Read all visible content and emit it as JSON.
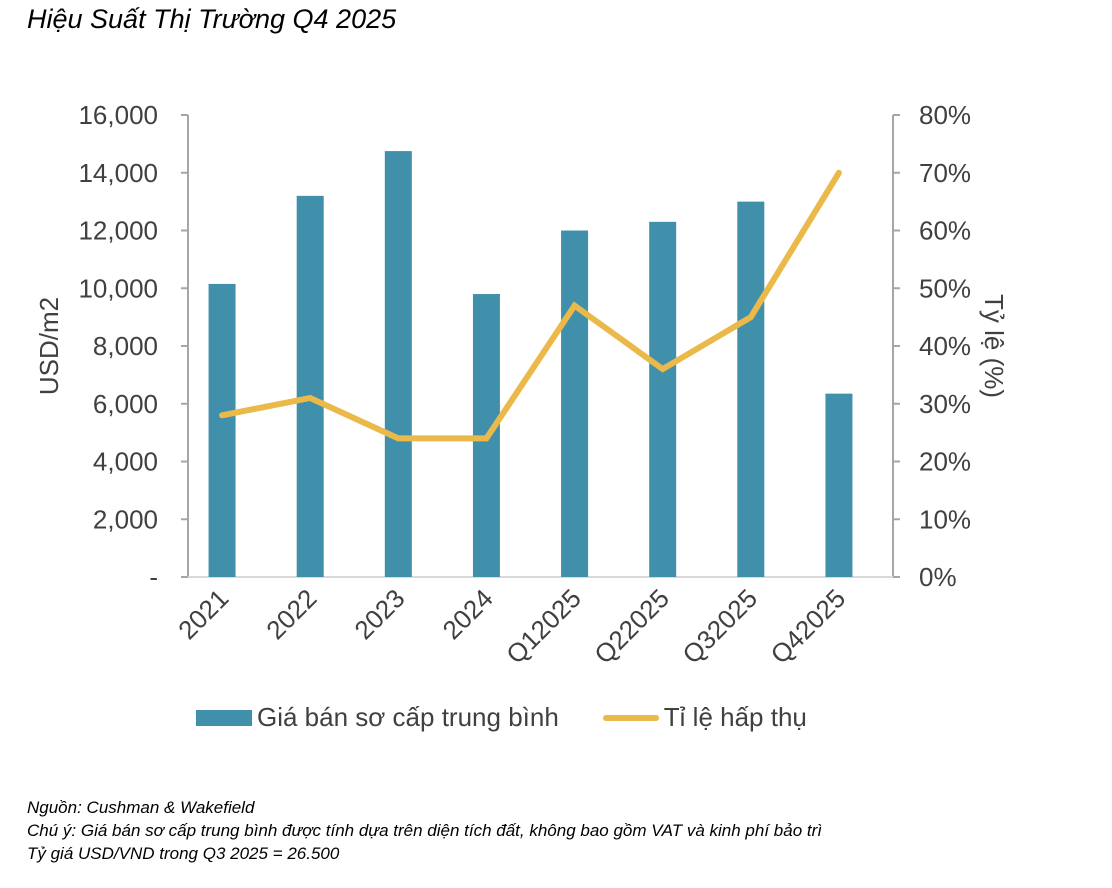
{
  "title": "Hiệu Suất Thị Trường Q4 2025",
  "colors": {
    "bar": "#4090ab",
    "line": "#ebb84a",
    "axis": "#a6a6a6",
    "text": "#404040"
  },
  "chart_data": {
    "type": "bar",
    "title": "Hiệu Suất Thị Trường Q4 2025",
    "categories": [
      "2021",
      "2022",
      "2023",
      "2024",
      "Q12025",
      "Q22025",
      "Q32025",
      "Q42025"
    ],
    "series": [
      {
        "name": "Giá bán sơ cấp trung bình",
        "type": "bar",
        "axis": "left",
        "values": [
          10150,
          13200,
          14750,
          9800,
          12000,
          12300,
          13000,
          6350
        ]
      },
      {
        "name": "Tỉ lệ hấp thụ",
        "type": "line",
        "axis": "right",
        "values": [
          28,
          31,
          24,
          24,
          47,
          36,
          45,
          70
        ]
      }
    ],
    "ylabel": "USD/m2",
    "ylim": [
      0,
      16000
    ],
    "yticks": [
      "-",
      "2,000",
      "4,000",
      "6,000",
      "8,000",
      "10,000",
      "12,000",
      "14,000",
      "16,000"
    ],
    "y2label": "Tỷ lệ (%)",
    "y2lim": [
      0,
      80
    ],
    "y2ticks": [
      "0%",
      "10%",
      "20%",
      "30%",
      "40%",
      "50%",
      "60%",
      "70%",
      "80%"
    ],
    "grid": false,
    "legend": "bottom"
  },
  "legend": {
    "bar_label": "Giá bán sơ cấp trung bình",
    "line_label": "Tỉ lệ hấp thụ"
  },
  "notes": {
    "source": "Nguồn: Cushman & Wakefield",
    "note": "Chú ý: Giá bán sơ cấp trung bình được tính dựa trên diện tích đất, không bao gồm VAT và  kinh phí bảo trì",
    "rate": "Tỷ giá USD/VND trong Q3 2025 = 26.500"
  }
}
